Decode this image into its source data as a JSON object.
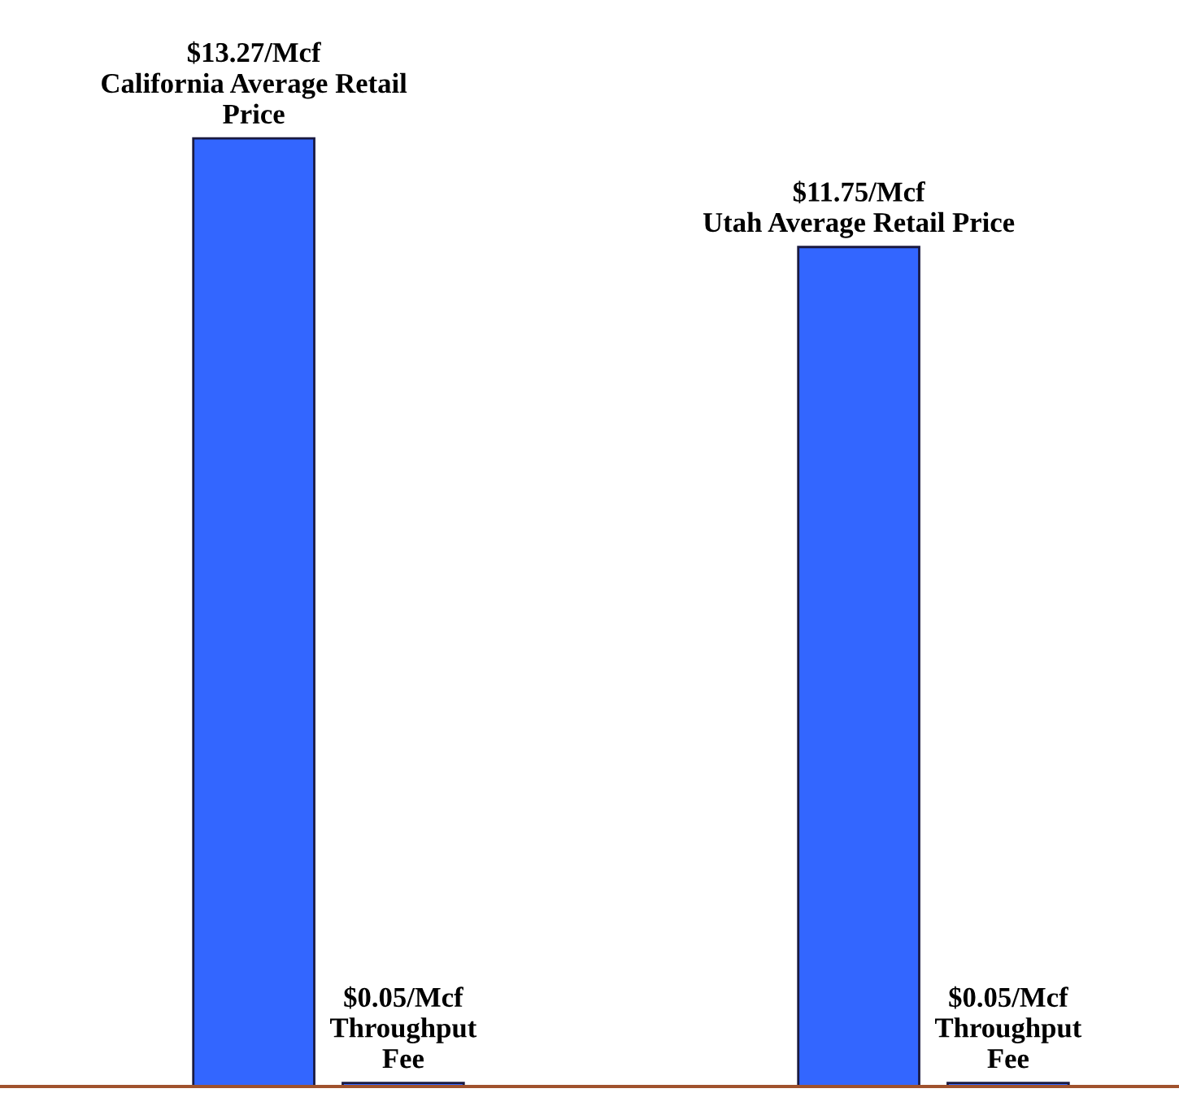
{
  "chart_data": {
    "type": "bar",
    "categories": [
      null,
      null
    ],
    "series": [
      {
        "color": "#3366ff",
        "values": [
          13.27,
          11.75
        ],
        "value_labels": [
          "$13.27/Mcf\nCalifornia Average Retail\nPrice",
          "$11.75/Mcf\nUtah Average Retail Price"
        ]
      },
      {
        "color": "#3366ff",
        "values": [
          0.05,
          0.05
        ],
        "value_labels": [
          "$0.05/Mcf\nThroughput\nFee",
          "$0.05/Mcf\nThroughput\nFee"
        ]
      }
    ],
    "grid": false,
    "legend": false
  }
}
